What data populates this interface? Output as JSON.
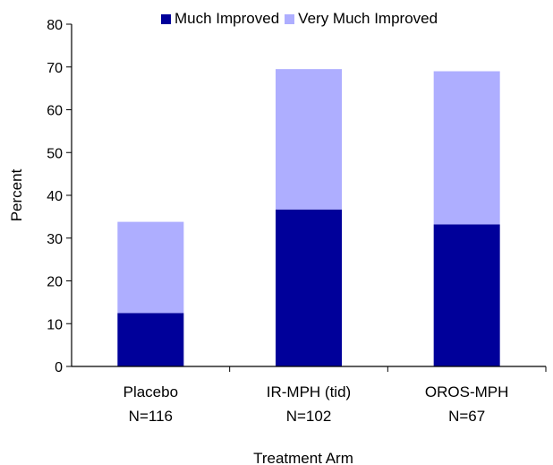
{
  "chart_data": {
    "type": "bar",
    "stacked": true,
    "title": "",
    "xlabel": "Treatment Arm",
    "ylabel": "Percent",
    "ylim": [
      0,
      80
    ],
    "yticks": [
      0,
      10,
      20,
      30,
      40,
      50,
      60,
      70,
      80
    ],
    "categories": [
      "Placebo",
      "IR-MPH (tid)",
      "OROS-MPH"
    ],
    "category_n": [
      "N=116",
      "N=102",
      "N=67"
    ],
    "series": [
      {
        "name": "Much Improved",
        "color": "#00009a",
        "values": [
          12.5,
          36.7,
          33.2
        ]
      },
      {
        "name": "Very Much Improved",
        "color": "#aeaeff",
        "values": [
          21.3,
          32.8,
          35.8
        ]
      }
    ],
    "grid": false,
    "legend_position": "top"
  }
}
